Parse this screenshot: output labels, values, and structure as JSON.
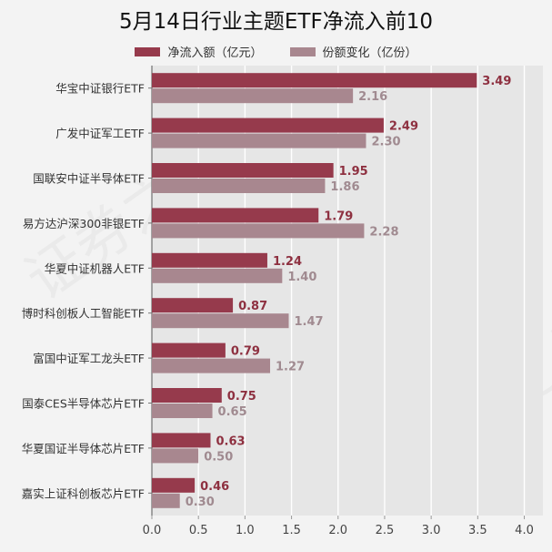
{
  "title": "5月14日行业主题ETF净流入前10",
  "legend": [
    {
      "label": "净流入额（亿元）",
      "color": "#963a4c"
    },
    {
      "label": "份额变化（亿份）",
      "color": "#a8878f"
    }
  ],
  "chart_data": {
    "type": "bar",
    "orientation": "horizontal",
    "title": "5月14日行业主题ETF净流入前10",
    "categories": [
      "华宝中证银行ETF",
      "广发中证军工ETF",
      "国联安中证半导体ETF",
      "易方达沪深300非银ETF",
      "华夏中证机器人ETF",
      "博时科创板人工智能ETF",
      "富国中证军工龙头ETF",
      "国泰CES半导体芯片ETF",
      "华夏国证半导体芯片ETF",
      "嘉实上证科创板芯片ETF"
    ],
    "series": [
      {
        "name": "净流入额（亿元）",
        "values": [
          3.49,
          2.49,
          1.95,
          1.79,
          1.24,
          0.87,
          0.79,
          0.75,
          0.63,
          0.46
        ]
      },
      {
        "name": "份额变化（亿份）",
        "values": [
          2.16,
          2.3,
          1.86,
          2.28,
          1.4,
          1.47,
          1.27,
          0.65,
          0.5,
          0.3
        ]
      }
    ],
    "value_labels": [
      [
        "3.49",
        "2.49",
        "1.95",
        "1.79",
        "1.24",
        "0.87",
        "0.79",
        "0.75",
        "0.63",
        "0.46"
      ],
      [
        "2.16",
        "2.30",
        "1.86",
        "2.28",
        "1.40",
        "1.47",
        "1.27",
        "0.65",
        "0.50",
        "0.30"
      ]
    ],
    "xlim": [
      0,
      4.2
    ],
    "xticks": [
      "0.0",
      "0.5",
      "1.0",
      "1.5",
      "2.0",
      "2.5",
      "3.0",
      "3.5",
      "4.0"
    ],
    "grid": true,
    "legend_position": "top",
    "colors": [
      "#963a4c",
      "#a8878f"
    ],
    "label_colors": [
      "#8e3040",
      "#a08a90"
    ]
  },
  "watermarks": [
    "证券之星",
    "证券之星",
    "证券之星",
    "证券之星"
  ]
}
